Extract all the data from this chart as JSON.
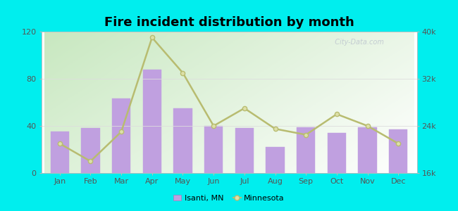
{
  "title": "Fire incident distribution by month",
  "months": [
    "Jan",
    "Feb",
    "Mar",
    "Apr",
    "May",
    "Jun",
    "Jul",
    "Aug",
    "Sep",
    "Oct",
    "Nov",
    "Dec"
  ],
  "isanti_values": [
    35,
    38,
    63,
    88,
    55,
    40,
    38,
    22,
    39,
    34,
    39,
    37
  ],
  "minnesota_values": [
    21000,
    18000,
    23000,
    39000,
    33000,
    24000,
    27000,
    23500,
    22500,
    26000,
    24000,
    21000
  ],
  "bar_color": "#c0a0e0",
  "bar_edgecolor": "#c0a0e0",
  "line_color": "#b8bc70",
  "line_marker_facecolor": "#dde0a8",
  "outer_background": "#00eeee",
  "ylim_left": [
    0,
    120
  ],
  "ylim_right": [
    16000,
    40000
  ],
  "yticks_left": [
    0,
    40,
    80,
    120
  ],
  "yticks_right": [
    16000,
    24000,
    32000,
    40000
  ],
  "watermark": "  City-Data.com",
  "legend_isanti": "Isanti, MN",
  "legend_minnesota": "Minnesota"
}
